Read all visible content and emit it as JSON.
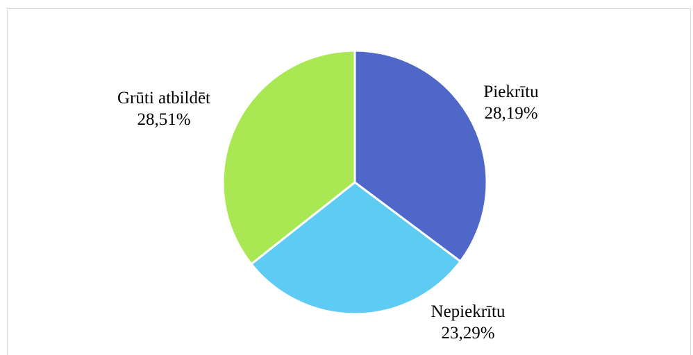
{
  "chart_data": {
    "type": "pie",
    "title": "",
    "start_angle_deg": 0,
    "direction": "clockwise",
    "slices": [
      {
        "label": "Piekrītu",
        "value": 28.19,
        "value_label": "28,19%",
        "color": "#4f67c9"
      },
      {
        "label": "Nepiekrītu",
        "value": 23.29,
        "value_label": "23,29%",
        "color": "#5ecbf3"
      },
      {
        "label": "Grūti atbildēt",
        "value": 28.51,
        "value_label": "28,51%",
        "color": "#a9e852"
      }
    ],
    "slice_border_color": "#ffffff",
    "legend": "none"
  }
}
